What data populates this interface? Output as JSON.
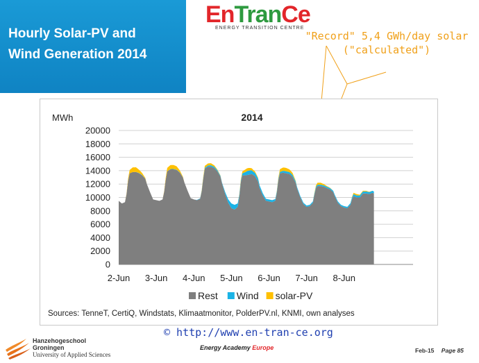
{
  "slide": {
    "title_line1": "Hourly Solar-PV and",
    "title_line2": "Wind Generation 2014"
  },
  "brand": {
    "en": "En",
    "tran": "Tran",
    "ce": "Ce",
    "subtitle": "ENERGY TRANSITION CENTRE"
  },
  "annotation": {
    "line1": "\"Record\" 5,4 GWh/day solar",
    "line2": "(\"calculated\")"
  },
  "sources": "Sources: TenneT, CertiQ, Windstats, Klimaatmonitor, PolderPV.nl, KNMI, own analyses",
  "footer": {
    "url": "© http://www.en-tran-ce.org",
    "academy_a": "Energy Academy",
    "academy_b": "Europe",
    "date": "Feb-15",
    "page": "Page 85",
    "school_l1": "Hanzehogeschool",
    "school_l2": "Groningen",
    "school_l3": "University of Applied Sciences"
  },
  "colors": {
    "rest": "#7f7f7f",
    "wind": "#1ab3e6",
    "solar": "#ffc000",
    "accent_blue": "#1a9ad6",
    "annotation": "#f0a019"
  },
  "chart_data": {
    "type": "area",
    "stacked": true,
    "title": "2014",
    "ylabel": "MWh",
    "ylim": [
      0,
      20000
    ],
    "yticks": [
      0,
      2000,
      4000,
      6000,
      8000,
      10000,
      12000,
      14000,
      16000,
      18000,
      20000
    ],
    "ytick_labels": [
      "0",
      "2000",
      "4000",
      "6000",
      "8000",
      "10000",
      "12000",
      "14000",
      "16000",
      "18000",
      "20000"
    ],
    "xtick_labels": [
      "2-Jun",
      "3-Jun",
      "4-Jun",
      "5-Jun",
      "6-Jun",
      "7-Jun",
      "8-Jun"
    ],
    "xlim_hours": [
      0,
      188
    ],
    "grid": "horizontal",
    "legend_position": "bottom",
    "series": [
      {
        "name": "Rest",
        "points": [
          [
            0,
            9500
          ],
          [
            2,
            9100
          ],
          [
            4,
            9300
          ],
          [
            5,
            10500
          ],
          [
            6,
            12500
          ],
          [
            7,
            13600
          ],
          [
            9,
            13800
          ],
          [
            11,
            13800
          ],
          [
            13,
            13600
          ],
          [
            15,
            13300
          ],
          [
            17,
            12800
          ],
          [
            18,
            12000
          ],
          [
            20,
            10800
          ],
          [
            22,
            9700
          ],
          [
            24,
            9600
          ],
          [
            26,
            9500
          ],
          [
            28,
            9700
          ],
          [
            29,
            10800
          ],
          [
            30,
            12600
          ],
          [
            31,
            13900
          ],
          [
            33,
            14200
          ],
          [
            35,
            14200
          ],
          [
            37,
            14100
          ],
          [
            39,
            13700
          ],
          [
            41,
            13000
          ],
          [
            42,
            12200
          ],
          [
            44,
            11000
          ],
          [
            46,
            9900
          ],
          [
            48,
            9700
          ],
          [
            50,
            9600
          ],
          [
            52,
            9800
          ],
          [
            53,
            10900
          ],
          [
            54,
            12800
          ],
          [
            55,
            14300
          ],
          [
            57,
            14600
          ],
          [
            59,
            14600
          ],
          [
            61,
            14400
          ],
          [
            63,
            13900
          ],
          [
            65,
            13100
          ],
          [
            66,
            12100
          ],
          [
            68,
            10500
          ],
          [
            70,
            9200
          ],
          [
            72,
            8400
          ],
          [
            74,
            8200
          ],
          [
            76,
            8600
          ],
          [
            77,
            10000
          ],
          [
            78,
            12300
          ],
          [
            79,
            13300
          ],
          [
            81,
            13300
          ],
          [
            83,
            13400
          ],
          [
            85,
            13500
          ],
          [
            87,
            13200
          ],
          [
            89,
            12400
          ],
          [
            90,
            11400
          ],
          [
            92,
            10300
          ],
          [
            94,
            9500
          ],
          [
            96,
            9400
          ],
          [
            98,
            9300
          ],
          [
            100,
            9500
          ],
          [
            101,
            10700
          ],
          [
            102,
            12600
          ],
          [
            103,
            13600
          ],
          [
            105,
            13700
          ],
          [
            107,
            13600
          ],
          [
            109,
            13500
          ],
          [
            111,
            13100
          ],
          [
            113,
            12200
          ],
          [
            114,
            11300
          ],
          [
            116,
            10000
          ],
          [
            118,
            9000
          ],
          [
            120,
            8600
          ],
          [
            122,
            8700
          ],
          [
            124,
            9200
          ],
          [
            125,
            10400
          ],
          [
            126,
            11400
          ],
          [
            127,
            11700
          ],
          [
            129,
            11700
          ],
          [
            131,
            11600
          ],
          [
            133,
            11400
          ],
          [
            135,
            11200
          ],
          [
            137,
            10800
          ],
          [
            138,
            10200
          ],
          [
            140,
            9200
          ],
          [
            142,
            8700
          ],
          [
            144,
            8500
          ],
          [
            146,
            8400
          ],
          [
            148,
            8900
          ],
          [
            149,
            9700
          ],
          [
            150,
            10200
          ],
          [
            152,
            10000
          ],
          [
            154,
            10000
          ],
          [
            155,
            10300
          ],
          [
            156,
            10600
          ],
          [
            158,
            10600
          ],
          [
            160,
            10500
          ],
          [
            162,
            10700
          ],
          [
            163,
            10600
          ]
        ]
      },
      {
        "name": "Wind",
        "points": [
          [
            0,
            0
          ],
          [
            4,
            0
          ],
          [
            6,
            0
          ],
          [
            10,
            0
          ],
          [
            14,
            50
          ],
          [
            18,
            0
          ],
          [
            24,
            0
          ],
          [
            30,
            0
          ],
          [
            34,
            50
          ],
          [
            38,
            50
          ],
          [
            42,
            0
          ],
          [
            48,
            0
          ],
          [
            54,
            100
          ],
          [
            58,
            200
          ],
          [
            62,
            200
          ],
          [
            66,
            100
          ],
          [
            70,
            500
          ],
          [
            72,
            700
          ],
          [
            74,
            700
          ],
          [
            76,
            500
          ],
          [
            78,
            200
          ],
          [
            80,
            400
          ],
          [
            82,
            600
          ],
          [
            84,
            600
          ],
          [
            86,
            500
          ],
          [
            88,
            500
          ],
          [
            90,
            400
          ],
          [
            94,
            300
          ],
          [
            98,
            300
          ],
          [
            102,
            200
          ],
          [
            106,
            300
          ],
          [
            110,
            300
          ],
          [
            114,
            200
          ],
          [
            118,
            200
          ],
          [
            120,
            200
          ],
          [
            126,
            200
          ],
          [
            130,
            200
          ],
          [
            134,
            200
          ],
          [
            138,
            200
          ],
          [
            142,
            200
          ],
          [
            146,
            200
          ],
          [
            150,
            300
          ],
          [
            154,
            300
          ],
          [
            158,
            300
          ],
          [
            163,
            300
          ]
        ]
      },
      {
        "name": "solar-PV",
        "points": [
          [
            0,
            0
          ],
          [
            4,
            0
          ],
          [
            5,
            100
          ],
          [
            6,
            300
          ],
          [
            7,
            500
          ],
          [
            9,
            700
          ],
          [
            11,
            700
          ],
          [
            13,
            500
          ],
          [
            15,
            300
          ],
          [
            17,
            100
          ],
          [
            18,
            0
          ],
          [
            28,
            0
          ],
          [
            29,
            100
          ],
          [
            30,
            300
          ],
          [
            31,
            500
          ],
          [
            33,
            600
          ],
          [
            35,
            600
          ],
          [
            37,
            500
          ],
          [
            39,
            300
          ],
          [
            41,
            100
          ],
          [
            42,
            0
          ],
          [
            52,
            0
          ],
          [
            53,
            100
          ],
          [
            54,
            200
          ],
          [
            55,
            300
          ],
          [
            57,
            300
          ],
          [
            59,
            300
          ],
          [
            61,
            200
          ],
          [
            63,
            100
          ],
          [
            65,
            50
          ],
          [
            66,
            0
          ],
          [
            76,
            0
          ],
          [
            77,
            100
          ],
          [
            78,
            200
          ],
          [
            79,
            300
          ],
          [
            81,
            400
          ],
          [
            83,
            400
          ],
          [
            85,
            300
          ],
          [
            87,
            200
          ],
          [
            89,
            100
          ],
          [
            90,
            0
          ],
          [
            100,
            0
          ],
          [
            101,
            100
          ],
          [
            102,
            200
          ],
          [
            103,
            400
          ],
          [
            105,
            500
          ],
          [
            107,
            500
          ],
          [
            109,
            400
          ],
          [
            111,
            300
          ],
          [
            113,
            100
          ],
          [
            114,
            0
          ],
          [
            124,
            0
          ],
          [
            125,
            100
          ],
          [
            126,
            200
          ],
          [
            127,
            300
          ],
          [
            129,
            300
          ],
          [
            131,
            200
          ],
          [
            133,
            100
          ],
          [
            135,
            50
          ],
          [
            137,
            0
          ],
          [
            148,
            0
          ],
          [
            149,
            100
          ],
          [
            150,
            200
          ],
          [
            152,
            200
          ],
          [
            154,
            100
          ],
          [
            155,
            100
          ],
          [
            156,
            100
          ],
          [
            158,
            100
          ],
          [
            160,
            50
          ],
          [
            162,
            0
          ],
          [
            163,
            0
          ]
        ]
      }
    ]
  }
}
